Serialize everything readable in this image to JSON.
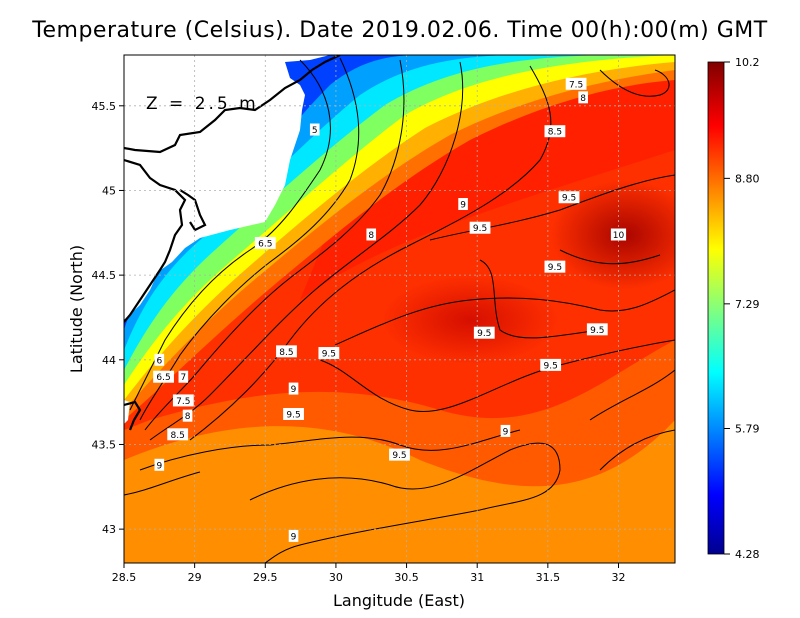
{
  "chart_data": {
    "type": "heatmap",
    "title": "Temperature (Celsius). Date 2019.02.06. Time 00(h):00(m)  GMT",
    "xlabel": "Langitude (East)",
    "ylabel": "Latitude (North)",
    "depth_label": "Z  =  2.5  m",
    "xlim": [
      28.5,
      32.4
    ],
    "ylim": [
      42.8,
      45.8
    ],
    "x_ticks": [
      "28.5",
      "29",
      "29.5",
      "30",
      "30.5",
      "31",
      "31.5",
      "32"
    ],
    "y_ticks": [
      "43",
      "43.5",
      "44",
      "44.5",
      "45",
      "45.5"
    ],
    "colorbar": {
      "min": 4.28,
      "max": 10.2,
      "tick_labels": [
        "10.2",
        "8.80",
        "7.29",
        "5.79",
        "4.28"
      ],
      "tick_values": [
        10.2,
        8.8,
        7.29,
        5.79,
        4.28
      ]
    },
    "contour_labels": [
      {
        "text": "7.5",
        "lon": 31.7,
        "lat": 45.63
      },
      {
        "text": "8",
        "lon": 31.75,
        "lat": 45.55
      },
      {
        "text": "8.5",
        "lon": 31.55,
        "lat": 45.35
      },
      {
        "text": "5",
        "lon": 29.85,
        "lat": 45.36
      },
      {
        "text": "9.5",
        "lon": 31.65,
        "lat": 44.96
      },
      {
        "text": "9",
        "lon": 30.9,
        "lat": 44.92
      },
      {
        "text": "9.5",
        "lon": 31.02,
        "lat": 44.78
      },
      {
        "text": "10",
        "lon": 32.0,
        "lat": 44.74
      },
      {
        "text": "8",
        "lon": 30.25,
        "lat": 44.74
      },
      {
        "text": "6.5",
        "lon": 29.5,
        "lat": 44.69
      },
      {
        "text": "9.5",
        "lon": 31.55,
        "lat": 44.55
      },
      {
        "text": "9.5",
        "lon": 31.85,
        "lat": 44.18
      },
      {
        "text": "9.5",
        "lon": 31.05,
        "lat": 44.16
      },
      {
        "text": "8.5",
        "lon": 29.65,
        "lat": 44.05
      },
      {
        "text": "9.5",
        "lon": 29.95,
        "lat": 44.04
      },
      {
        "text": "9.5",
        "lon": 31.52,
        "lat": 43.97
      },
      {
        "text": "6",
        "lon": 28.75,
        "lat": 44.0
      },
      {
        "text": "6.5",
        "lon": 28.78,
        "lat": 43.9
      },
      {
        "text": "7",
        "lon": 28.92,
        "lat": 43.9
      },
      {
        "text": "9",
        "lon": 29.7,
        "lat": 43.83
      },
      {
        "text": "7.5",
        "lon": 28.92,
        "lat": 43.76
      },
      {
        "text": "8",
        "lon": 28.95,
        "lat": 43.67
      },
      {
        "text": "9.5",
        "lon": 29.7,
        "lat": 43.68
      },
      {
        "text": "8.5",
        "lon": 28.88,
        "lat": 43.56
      },
      {
        "text": "9",
        "lon": 31.2,
        "lat": 43.58
      },
      {
        "text": "9.5",
        "lon": 30.45,
        "lat": 43.44
      },
      {
        "text": "9",
        "lon": 28.75,
        "lat": 43.38
      },
      {
        "text": "9",
        "lon": 29.7,
        "lat": 42.96
      }
    ]
  }
}
